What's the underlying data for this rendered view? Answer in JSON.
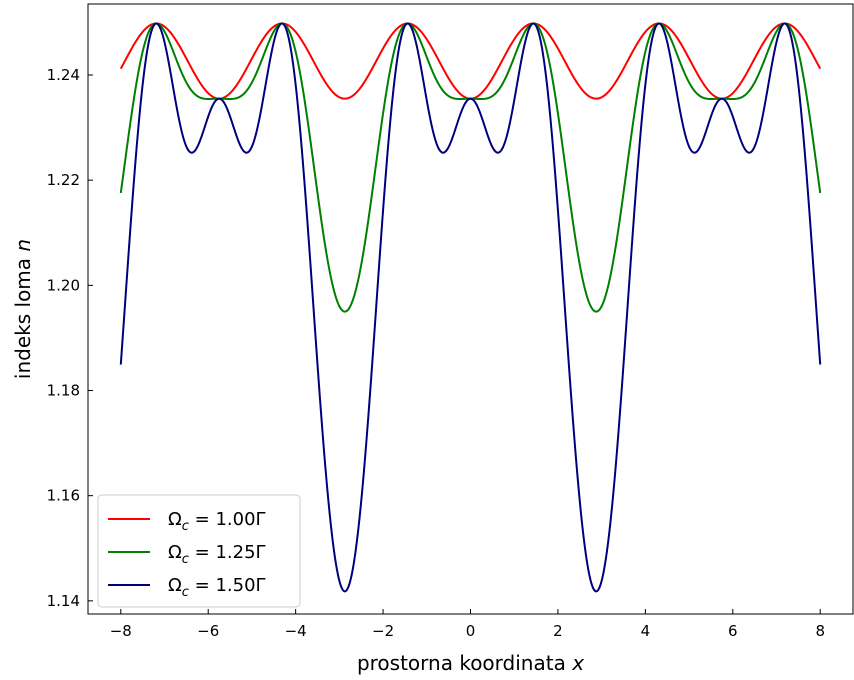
{
  "chart_data": {
    "type": "line",
    "xlabel": "prostorna koordinata x",
    "ylabel": "indeks loma n",
    "xlim": [
      -8.75,
      8.75
    ],
    "ylim": [
      1.1375,
      1.2535
    ],
    "xticks": [
      -8,
      -6,
      -4,
      -2,
      0,
      2,
      4,
      6,
      8
    ],
    "yticks": [
      1.14,
      1.16,
      1.18,
      1.2,
      1.22,
      1.24
    ],
    "tick_direction": "in",
    "grid": false,
    "legend_position": "lower-left",
    "x_range": [
      -8,
      8
    ],
    "period": 5.75,
    "series": [
      {
        "name": "Ω_c = 1.00Γ",
        "color": "#ff0000",
        "max": 1.2498,
        "local_min": 1.2355,
        "center_min": 1.2355,
        "sharpness": 1.0
      },
      {
        "name": "Ω_c = 1.25Γ",
        "color": "#008000",
        "max": 1.2498,
        "local_min": 1.2355,
        "center_min": 1.195,
        "sharpness": 1.6
      },
      {
        "name": "Ω_c = 1.50Γ",
        "color": "#00007f",
        "max": 1.2498,
        "local_min": 1.2355,
        "center_min": 1.1418,
        "sharpness": 2.8
      }
    ],
    "legend_labels": [
      {
        "omega": "Ω",
        "sub": "c",
        "value": " = 1.00Γ"
      },
      {
        "omega": "Ω",
        "sub": "c",
        "value": " = 1.25Γ"
      },
      {
        "omega": "Ω",
        "sub": "c",
        "value": " = 1.50Γ"
      }
    ],
    "xlabel_parts": {
      "text": "prostorna koordinata ",
      "var": "x"
    },
    "ylabel_parts": {
      "text": "indeks loma ",
      "var": "n"
    }
  }
}
